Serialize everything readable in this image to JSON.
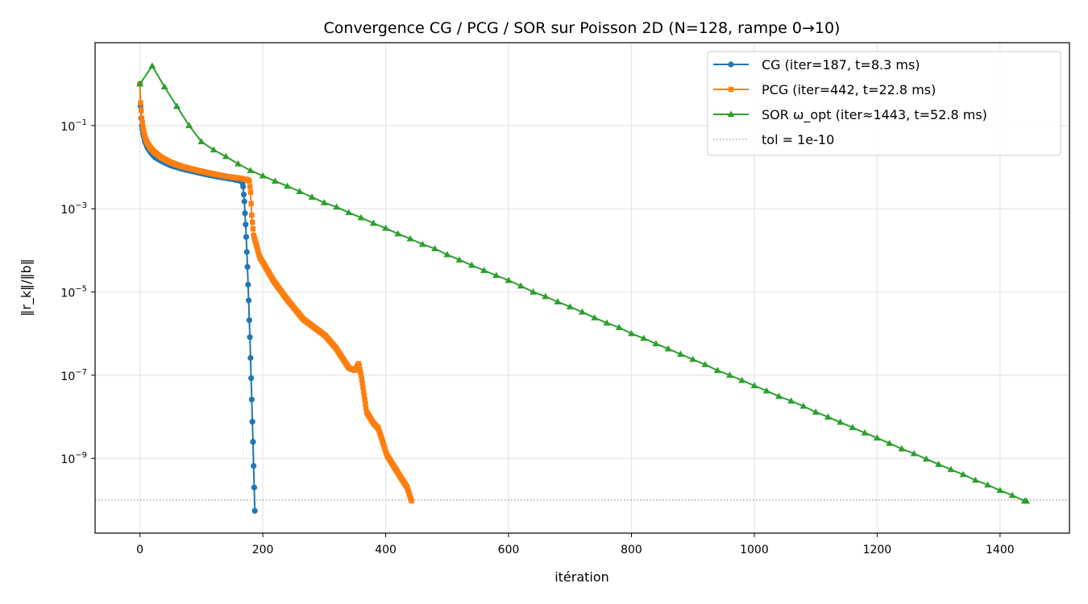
{
  "chart_data": {
    "type": "line",
    "title": "Convergence CG / PCG / SOR sur Poisson 2D  (N=128, rampe 0→10)",
    "xlabel": "itération",
    "ylabel": "‖r_k‖/‖b‖",
    "yscale": "log",
    "xlim": [
      -73,
      1513
    ],
    "ylim": [
      1.6e-11,
      9.8
    ],
    "grid": true,
    "legend_position": "top-right",
    "xticks": [
      0,
      200,
      400,
      600,
      800,
      1000,
      1200,
      1400
    ],
    "xtick_labels": [
      "0",
      "200",
      "400",
      "600",
      "800",
      "1000",
      "1200",
      "1400"
    ],
    "yticks": [
      0.1,
      0.001,
      1e-05,
      1e-07,
      1e-09
    ],
    "ytick_labels": [
      {
        "base": "10",
        "exp": "−1"
      },
      {
        "base": "10",
        "exp": "−3"
      },
      {
        "base": "10",
        "exp": "−5"
      },
      {
        "base": "10",
        "exp": "−7"
      },
      {
        "base": "10",
        "exp": "−9"
      }
    ],
    "series": [
      {
        "name": "CG (iter=187, t=8.3 ms)",
        "color": "#1f77b4",
        "marker": "circle",
        "x": [
          0,
          1,
          2,
          3,
          5,
          8,
          12,
          18,
          25,
          35,
          50,
          70,
          90,
          110,
          130,
          150,
          166,
          167,
          168,
          169,
          170,
          171,
          172,
          173,
          174,
          175,
          176,
          177,
          178,
          179,
          180,
          181,
          182,
          183,
          184,
          185,
          186,
          187
        ],
        "y": [
          1.0,
          0.3,
          0.15,
          0.1,
          0.065,
          0.042,
          0.03,
          0.022,
          0.017,
          0.014,
          0.011,
          0.009,
          0.0077,
          0.0066,
          0.0058,
          0.0052,
          0.0046,
          0.0041,
          0.0034,
          0.0022,
          0.0015,
          0.00078,
          0.00042,
          0.00021,
          9.1e-05,
          4e-05,
          1.5e-05,
          6.3e-06,
          2.1e-06,
          8.2e-07,
          2.6e-07,
          8.5e-08,
          2.6e-08,
          7.6e-09,
          2.5e-09,
          6.6e-10,
          2e-10,
          5.5e-11
        ]
      },
      {
        "name": "PCG (iter=442, t=22.8 ms)",
        "color": "#ff7f0e",
        "marker": "square",
        "x": [
          0,
          1,
          2,
          3,
          5,
          8,
          12,
          18,
          25,
          35,
          50,
          69,
          90,
          113,
          140,
          160,
          175,
          178,
          180,
          182,
          183,
          185,
          195,
          218,
          240,
          266,
          301,
          319,
          340,
          350,
          356,
          360,
          369,
          380,
          388,
          402,
          424,
          435,
          442
        ],
        "y": [
          1.0,
          0.35,
          0.23,
          0.15,
          0.09,
          0.054,
          0.038,
          0.028,
          0.022,
          0.017,
          0.013,
          0.0103,
          0.0086,
          0.0072,
          0.006,
          0.0055,
          0.005,
          0.0046,
          0.0025,
          0.0007,
          0.00047,
          0.00023,
          6.9e-05,
          1.8e-05,
          6.5e-06,
          2.2e-06,
          9.1e-07,
          4.5e-07,
          1.5e-07,
          1.3e-07,
          1.9e-07,
          1e-07,
          1.3e-08,
          7e-09,
          5.3e-09,
          1.2e-09,
          3.6e-10,
          2e-10,
          9.5e-11
        ]
      },
      {
        "name": "SOR ω_opt (iter≈1443, t=52.8 ms)",
        "color": "#2ca02c",
        "marker": "triangle",
        "x": [
          0,
          20,
          40,
          60,
          80,
          100,
          120,
          140,
          160,
          180,
          200,
          220,
          240,
          260,
          280,
          300,
          320,
          340,
          360,
          380,
          400,
          420,
          440,
          460,
          480,
          500,
          520,
          540,
          560,
          580,
          600,
          620,
          640,
          660,
          680,
          700,
          720,
          740,
          760,
          780,
          800,
          820,
          840,
          860,
          880,
          900,
          920,
          940,
          960,
          980,
          1000,
          1020,
          1040,
          1060,
          1080,
          1100,
          1120,
          1140,
          1160,
          1180,
          1200,
          1220,
          1240,
          1260,
          1280,
          1300,
          1320,
          1340,
          1360,
          1380,
          1400,
          1420,
          1440,
          1443
        ],
        "y": [
          1.0,
          2.7,
          0.85,
          0.29,
          0.1,
          0.041,
          0.026,
          0.018,
          0.012,
          0.0083,
          0.0062,
          0.0046,
          0.0035,
          0.0026,
          0.0019,
          0.0014,
          0.0011,
          0.00081,
          0.00061,
          0.00045,
          0.00034,
          0.00025,
          0.00019,
          0.00014,
          0.00011,
          7.9e-05,
          5.9e-05,
          4.4e-05,
          3.3e-05,
          2.5e-05,
          1.9e-05,
          1.4e-05,
          1e-05,
          7.8e-06,
          5.8e-06,
          4.4e-06,
          3.3e-06,
          2.4e-06,
          1.8e-06,
          1.4e-06,
          1e-06,
          7.7e-07,
          5.7e-07,
          4.3e-07,
          3.2e-07,
          2.4e-07,
          1.8e-07,
          1.3e-07,
          1e-07,
          7.5e-08,
          5.6e-08,
          4.2e-08,
          3.1e-08,
          2.4e-08,
          1.8e-08,
          1.3e-08,
          9.9e-09,
          7.4e-09,
          5.5e-09,
          4.1e-09,
          3.1e-09,
          2.3e-09,
          1.7e-09,
          1.3e-09,
          9.7e-10,
          7.2e-10,
          5.4e-10,
          4.1e-10,
          3e-10,
          2.3e-10,
          1.7e-10,
          1.3e-10,
          9.5e-11,
          9.4e-11
        ]
      }
    ],
    "hlines": [
      {
        "name": "tol = 1e-10",
        "y": 1e-10,
        "color": "#808080",
        "style": "dotted"
      }
    ]
  }
}
